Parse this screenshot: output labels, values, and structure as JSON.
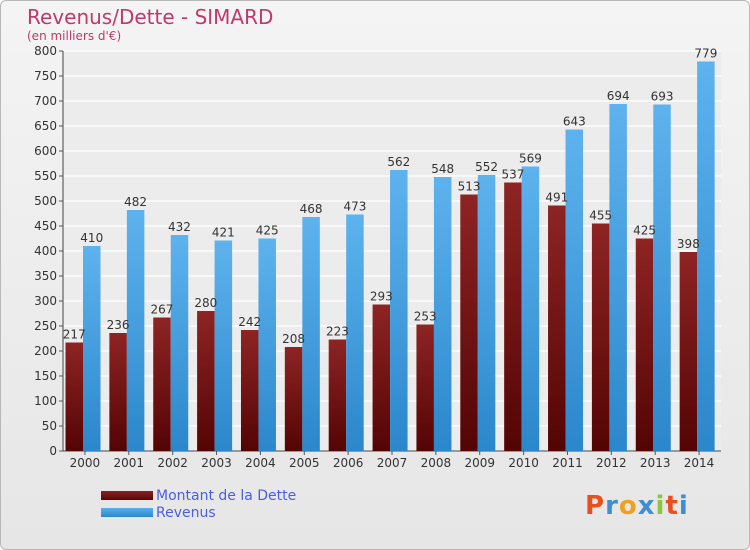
{
  "title": "Revenus/Dette - SIMARD",
  "subtitle": "(en milliers d'€)",
  "chart_data": {
    "type": "bar",
    "title": "Revenus/Dette - SIMARD",
    "ylabel": "(en milliers d'€)",
    "ylim": [
      0,
      800
    ],
    "yticks": [
      0,
      50,
      100,
      150,
      200,
      250,
      300,
      350,
      400,
      450,
      500,
      550,
      600,
      650,
      700,
      750,
      800
    ],
    "grid": true,
    "legend_position": "bottom-left",
    "categories": [
      "2000",
      "2001",
      "2002",
      "2003",
      "2004",
      "2005",
      "2006",
      "2007",
      "2008",
      "2009",
      "2010",
      "2011",
      "2012",
      "2013",
      "2014"
    ],
    "series": [
      {
        "name": "Montant de la Dette",
        "color": "#7a1616",
        "values": [
          217,
          236,
          267,
          280,
          242,
          208,
          223,
          293,
          253,
          513,
          537,
          491,
          455,
          425,
          398
        ]
      },
      {
        "name": "Revenus",
        "color": "#3d9be0",
        "values": [
          410,
          482,
          432,
          421,
          425,
          468,
          473,
          562,
          548,
          552,
          569,
          643,
          694,
          693,
          779
        ]
      }
    ]
  },
  "legend": {
    "debt": "Montant de la Dette",
    "revenue": "Revenus"
  },
  "logo": {
    "text": "Proxiti",
    "colors": [
      "#e8501f",
      "#3f8fd0",
      "#f0a020",
      "#3f8fd0",
      "#8cc63f",
      "#e8501f",
      "#3f8fd0"
    ]
  }
}
